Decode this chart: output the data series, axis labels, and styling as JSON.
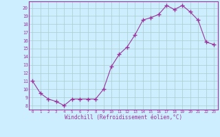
{
  "x": [
    0,
    1,
    2,
    3,
    4,
    5,
    6,
    7,
    8,
    9,
    10,
    11,
    12,
    13,
    14,
    15,
    16,
    17,
    18,
    19,
    20,
    21,
    22,
    23
  ],
  "y": [
    11.0,
    9.5,
    8.8,
    8.5,
    8.0,
    8.8,
    8.8,
    8.8,
    8.8,
    10.0,
    12.8,
    14.3,
    15.2,
    16.7,
    18.5,
    18.8,
    19.2,
    20.3,
    19.8,
    20.3,
    19.5,
    18.5,
    15.8,
    15.5
  ],
  "line_color": "#993399",
  "marker": "+",
  "marker_size": 4,
  "bg_color": "#cceeff",
  "grid_color": "#aacccc",
  "xlabel": "Windchill (Refroidissement éolien,°C)",
  "xlabel_color": "#993399",
  "tick_color": "#993399",
  "ylabel_ticks": [
    8,
    9,
    10,
    11,
    12,
    13,
    14,
    15,
    16,
    17,
    18,
    19,
    20
  ],
  "xlabel_ticks": [
    0,
    1,
    2,
    3,
    4,
    5,
    6,
    7,
    8,
    9,
    10,
    11,
    12,
    13,
    14,
    15,
    16,
    17,
    18,
    19,
    20,
    21,
    22,
    23
  ],
  "ylim": [
    7.5,
    20.8
  ],
  "xlim": [
    -0.5,
    23.5
  ],
  "spine_color": "#993399"
}
